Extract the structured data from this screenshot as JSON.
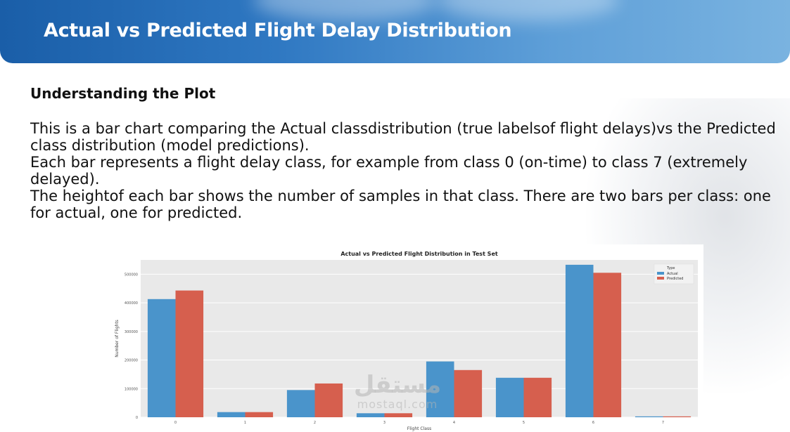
{
  "slide": {
    "title": "Actual vs Predicted Flight Delay Distribution",
    "section_heading": "Understanding the Plot",
    "paragraphs": [
      "This is a bar chart comparing the Actual classdistribution (true labelsof flight delays)vs the Predicted class distribution (model predictions).",
      "Each bar represents a flight delay class, for example from class 0 (on-time) to class 7 (extremely delayed).",
      "The heightof each bar shows the number of samples in that class. There are two bars per class: one for actual, one for predicted."
    ]
  },
  "watermark": {
    "top": "مستقل",
    "bottom": "mostaql.com"
  },
  "chart_data": {
    "type": "bar",
    "title": "Actual vs Predicted Flight Distribution in Test Set",
    "xlabel": "Flight Class",
    "ylabel": "Number of Flights",
    "categories": [
      "0",
      "1",
      "2",
      "3",
      "4",
      "5",
      "6",
      "7"
    ],
    "series": [
      {
        "name": "Actual",
        "color": "#4a94cb",
        "values": [
          413000,
          18000,
          95000,
          14000,
          195000,
          138000,
          533000,
          3000
        ]
      },
      {
        "name": "Predicted",
        "color": "#d65f4e",
        "values": [
          443000,
          18000,
          118000,
          14000,
          165000,
          138000,
          505000,
          3000
        ]
      }
    ],
    "ylim": [
      0,
      550000
    ],
    "yticks": [
      0,
      100000,
      200000,
      300000,
      400000,
      500000
    ],
    "legend": {
      "title": "Type",
      "placement": "top-right"
    },
    "grid": true,
    "background": "#e9e9e9"
  }
}
